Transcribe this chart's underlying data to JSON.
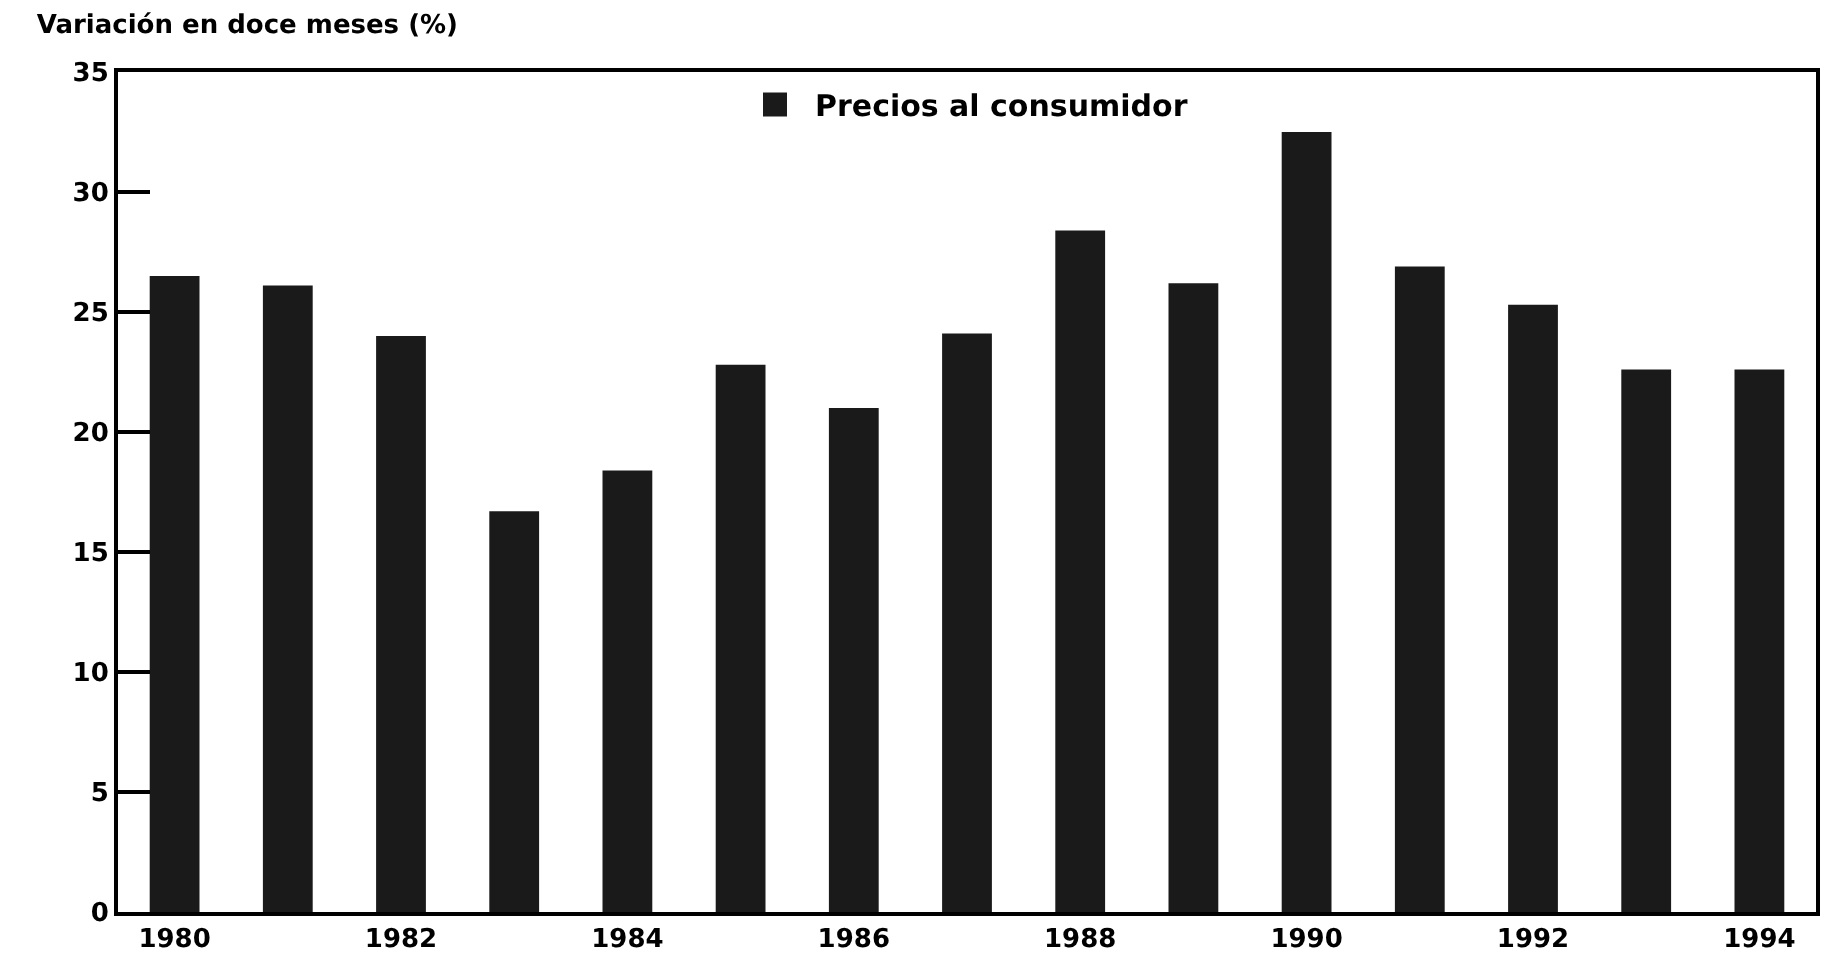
{
  "chart_data": {
    "type": "bar",
    "title": "Variación en doce meses (%)",
    "x": [
      1980,
      1981,
      1982,
      1983,
      1984,
      1985,
      1986,
      1987,
      1988,
      1989,
      1990,
      1991,
      1992,
      1993,
      1994
    ],
    "series": [
      {
        "name": "Precios al consumidor",
        "color": "#1a1a1a",
        "values": [
          26.5,
          26.1,
          24.0,
          16.7,
          18.4,
          22.8,
          21.0,
          24.1,
          28.4,
          26.2,
          32.5,
          26.9,
          25.3,
          22.6,
          22.6
        ]
      }
    ],
    "xlim": [
      1979.5,
      1994.5
    ],
    "xticks": [
      1980,
      1982,
      1984,
      1986,
      1988,
      1990,
      1992,
      1994
    ],
    "ylim": [
      0,
      35
    ],
    "yticks": [
      0,
      5,
      10,
      15,
      20,
      25,
      30,
      35
    ],
    "grid": false,
    "legend": "top"
  }
}
